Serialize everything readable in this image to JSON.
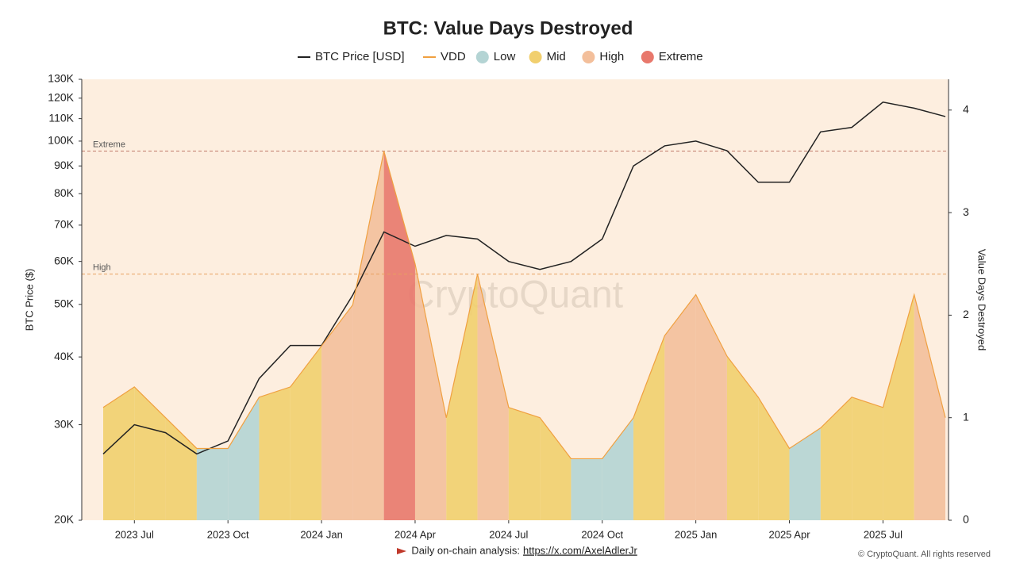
{
  "chart_data": {
    "type": "dual-axis-line-area",
    "title": "BTC: Value Days Destroyed",
    "y_label": "BTC Price ($)",
    "y2_label": "Value Days Destroyed",
    "x": [
      "2023-06",
      "2023-07",
      "2023-08",
      "2023-09",
      "2023-10",
      "2023-11",
      "2023-12",
      "2024-01",
      "2024-02",
      "2024-03",
      "2024-04",
      "2024-05",
      "2024-06",
      "2024-07",
      "2024-08",
      "2024-09",
      "2024-10",
      "2024-11",
      "2024-12",
      "2025-01",
      "2025-02",
      "2025-03",
      "2025-04",
      "2025-05",
      "2025-06",
      "2025-07",
      "2025-08",
      "2025-09"
    ],
    "xticks": [
      {
        "value": "2023-07",
        "label": "2023 Jul"
      },
      {
        "value": "2023-10",
        "label": "2023 Oct"
      },
      {
        "value": "2024-01",
        "label": "2024 Jan"
      },
      {
        "value": "2024-04",
        "label": "2024 Apr"
      },
      {
        "value": "2024-07",
        "label": "2024 Jul"
      },
      {
        "value": "2024-10",
        "label": "2024 Oct"
      },
      {
        "value": "2025-01",
        "label": "2025 Jan"
      },
      {
        "value": "2025-04",
        "label": "2025 Apr"
      },
      {
        "value": "2025-07",
        "label": "2025 Jul"
      }
    ],
    "series": [
      {
        "name": "BTC Price [USD]",
        "color": "#222222",
        "axis": "y",
        "values": [
          26500,
          30000,
          29000,
          26500,
          28000,
          36500,
          42000,
          42000,
          52000,
          68000,
          64000,
          67000,
          66000,
          60000,
          58000,
          60000,
          66000,
          90000,
          98000,
          100000,
          96000,
          84000,
          84000,
          104000,
          106000,
          118000,
          115000,
          111000
        ]
      },
      {
        "name": "VDD",
        "color": "#f0a040",
        "axis": "y2",
        "values": [
          1.1,
          1.3,
          1.0,
          0.7,
          0.7,
          1.2,
          1.3,
          1.7,
          2.1,
          3.6,
          2.5,
          1.0,
          2.4,
          1.1,
          1.0,
          0.6,
          0.6,
          1.0,
          1.8,
          2.2,
          1.6,
          1.2,
          0.7,
          0.9,
          1.2,
          1.1,
          2.2,
          1.0
        ]
      }
    ],
    "zones": [
      {
        "name": "Low",
        "color": "#b4d4d4"
      },
      {
        "name": "Mid",
        "color": "#f1cf6e"
      },
      {
        "name": "High",
        "color": "#f3bf9b"
      },
      {
        "name": "Extreme",
        "color": "#e8786c"
      }
    ],
    "regime": [
      1,
      1,
      1,
      0,
      0,
      1,
      1,
      2,
      2,
      3,
      2,
      1,
      2,
      1,
      1,
      0,
      0,
      1,
      2,
      2,
      1,
      1,
      0,
      1,
      1,
      1,
      2,
      1
    ],
    "thresholds": [
      {
        "label": "Extreme",
        "value": 3.6
      },
      {
        "label": "High",
        "value": 2.4
      }
    ],
    "log_y": true,
    "ylim": [
      20000,
      130000
    ],
    "yticks": [
      {
        "value": 20000,
        "label": "20K"
      },
      {
        "value": 30000,
        "label": "30K"
      },
      {
        "value": 40000,
        "label": "40K"
      },
      {
        "value": 50000,
        "label": "50K"
      },
      {
        "value": 60000,
        "label": "60K"
      },
      {
        "value": 70000,
        "label": "70K"
      },
      {
        "value": 80000,
        "label": "80K"
      },
      {
        "value": 90000,
        "label": "90K"
      },
      {
        "value": 100000,
        "label": "100K"
      },
      {
        "value": 110000,
        "label": "110K"
      },
      {
        "value": 120000,
        "label": "120K"
      },
      {
        "value": 130000,
        "label": "130K"
      }
    ],
    "y2lim": [
      0,
      4.3
    ],
    "y2ticks": [
      0,
      1,
      2,
      3,
      4
    ],
    "background": "#fdeedf",
    "watermark": "CryptoQuant",
    "footer": {
      "text": "Daily on-chain analysis:",
      "link": "https://x.com/AxelAdlerJr",
      "copyright": "© CryptoQuant. All rights reserved"
    }
  }
}
